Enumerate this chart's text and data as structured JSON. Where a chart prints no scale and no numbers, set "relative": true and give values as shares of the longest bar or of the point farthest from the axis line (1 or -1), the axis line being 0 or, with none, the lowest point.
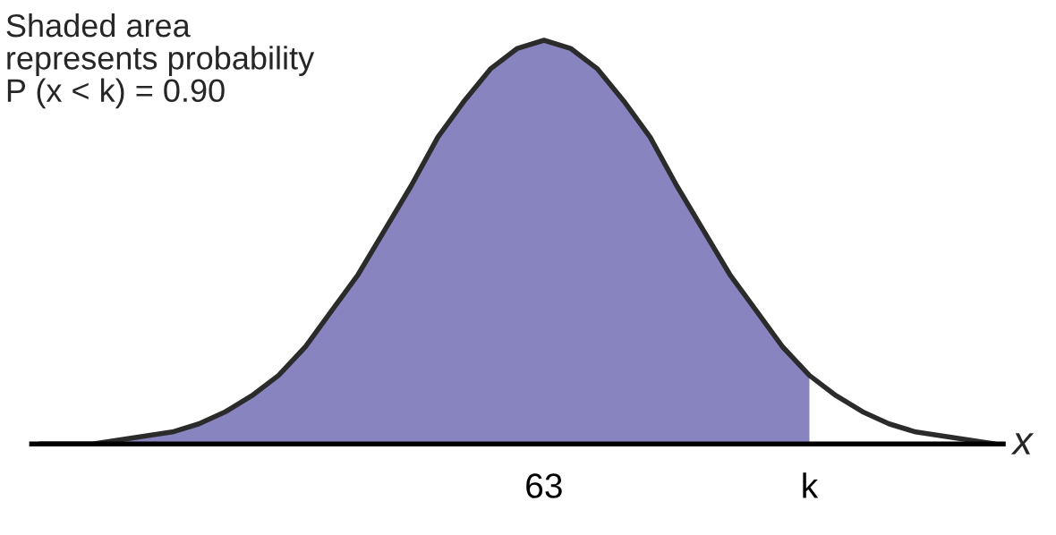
{
  "chart_data": {
    "type": "area",
    "relative": true,
    "xlabel": "x",
    "categories": [
      null,
      null,
      null,
      null,
      null,
      null,
      null,
      null,
      null,
      null,
      null,
      null,
      null,
      null,
      null,
      null,
      null,
      null,
      null,
      "63",
      null,
      null,
      null,
      null,
      null,
      null,
      null,
      null,
      null,
      "k",
      null,
      null,
      null,
      null,
      null,
      null,
      null
    ],
    "series": [
      {
        "color": "#8884c0",
        "values": [
          0.0,
          0.0,
          0.0,
          0.01,
          0.02,
          0.03,
          0.05,
          0.08,
          0.12,
          0.17,
          0.24,
          0.33,
          0.42,
          0.53,
          0.64,
          0.76,
          0.85,
          0.93,
          0.98,
          1.0,
          0.98,
          0.93,
          0.85,
          0.76,
          0.64,
          0.53,
          0.42,
          0.33,
          0.24,
          0.17,
          null,
          null,
          null,
          null,
          null,
          null,
          null
        ]
      },
      {
        "type": "line",
        "color": "#2b2b2b",
        "values": [
          0.0,
          0.0,
          0.0,
          0.01,
          0.02,
          0.03,
          0.05,
          0.08,
          0.12,
          0.17,
          0.24,
          0.33,
          0.42,
          0.53,
          0.64,
          0.76,
          0.85,
          0.93,
          0.98,
          1.0,
          0.98,
          0.93,
          0.85,
          0.76,
          0.64,
          0.53,
          0.42,
          0.33,
          0.24,
          0.17,
          0.12,
          0.08,
          0.05,
          0.03,
          0.02,
          0.01,
          0.0
        ]
      }
    ],
    "annotations": [
      "Shaded area\nrepresents probability\nP (x < k) = 0.90"
    ],
    "grid": false,
    "legend": false
  }
}
